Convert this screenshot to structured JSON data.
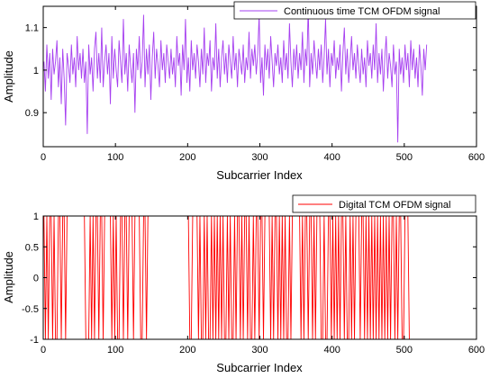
{
  "chart_data": [
    {
      "type": "line",
      "title": "",
      "xlabel": "Subcarrier Index",
      "ylabel": "Amplitude",
      "xlim": [
        0,
        600
      ],
      "ylim": [
        0.82,
        1.15
      ],
      "xticks": [
        0,
        100,
        200,
        300,
        400,
        500,
        600
      ],
      "yticks": [
        0.9,
        1,
        1.1
      ],
      "ytick_labels": [
        "0.9",
        "1",
        "1.1"
      ],
      "legend": "top-right",
      "grid": false,
      "series": [
        {
          "name": "Continuous time TCM OFDM signal",
          "color": "#a63ff0",
          "x_start": 1,
          "x_step": 2,
          "values": [
            1.02,
            0.95,
            1.06,
            0.98,
            1.04,
            0.93,
            1.05,
            0.99,
            1.02,
            1.07,
            0.96,
            1.03,
            0.92,
            1.05,
            0.98,
            0.87,
            1.04,
            1.01,
            0.97,
            1.06,
            0.99,
            1.03,
            0.96,
            1.08,
            1.0,
            1.04,
            0.98,
            1.05,
            0.97,
            1.02,
            0.85,
            1.06,
            0.99,
            1.03,
            0.95,
            1.05,
            1.09,
            0.98,
            1.04,
            0.97,
            1.1,
            0.96,
            1.02,
            1.06,
            0.99,
            1.04,
            0.92,
            1.08,
            0.98,
            1.05,
            1.0,
            0.96,
            1.07,
            1.02,
            0.97,
            1.12,
            0.99,
            1.04,
            0.95,
            1.06,
            1.01,
            0.97,
            1.04,
            0.9,
            1.05,
            1.0,
            1.08,
            0.98,
            1.02,
            1.13,
            0.96,
            1.05,
            0.99,
            1.06,
            0.93,
            1.03,
            1.09,
            0.98,
            1.05,
            1.01,
            0.96,
            1.07,
            1.0,
            1.04,
            0.97,
            1.06,
            1.02,
            0.98,
            1.05,
            0.99,
            1.03,
            0.96,
            1.08,
            1.01,
            1.04,
            0.94,
            1.06,
            1.0,
            1.12,
            0.97,
            1.03,
            0.95,
            1.07,
            1.0,
            1.04,
            0.98,
            1.06,
            1.02,
            0.96,
            1.05,
            0.99,
            1.1,
            0.97,
            1.04,
            1.01,
            1.07,
            0.95,
            1.03,
            1.0,
            1.11,
            0.98,
            1.05,
            0.96,
            1.03,
            1.07,
            0.99,
            1.04,
            0.97,
            1.06,
            1.02,
            0.98,
            1.08,
            1.0,
            1.04,
            0.96,
            1.05,
            1.02,
            0.99,
            1.06,
            0.97,
            1.03,
            1.0,
            1.09,
            0.98,
            1.05,
            1.01,
            1.06,
            0.99,
            1.04,
            1.13,
            0.97,
            1.03,
            0.94,
            1.06,
            1.0,
            1.05,
            0.98,
            1.08,
            1.02,
            0.96,
            1.04,
            1.01,
            1.06,
            0.99,
            1.03,
            0.97,
            1.07,
            1.0,
            1.04,
            0.98,
            1.11,
            1.02,
            0.96,
            1.05,
            1.0,
            1.06,
            0.98,
            1.04,
            1.0,
            1.09,
            0.97,
            1.05,
            1.01,
            1.15,
            0.96,
            1.04,
            0.99,
            1.07,
            1.02,
            0.98,
            1.05,
            1.0,
            1.06,
            0.97,
            1.03,
            1.12,
            0.99,
            1.05,
            0.96,
            1.04,
            1.01,
            1.07,
            0.98,
            1.03,
            1.0,
            1.06,
            0.95,
            1.04,
            1.1,
            0.99,
            1.05,
            0.97,
            1.02,
            1.08,
            1.0,
            1.04,
            0.98,
            1.06,
            1.01,
            0.97,
            1.05,
            0.99,
            1.03,
            0.96,
            1.07,
            1.01,
            1.04,
            0.98,
            1.06,
            1.0,
            1.11,
            0.97,
            1.04,
            0.99,
            1.05,
            0.95,
            1.03,
            1.08,
            0.98,
            1.04,
            1.01,
            0.96,
            1.06,
            0.99,
            1.02,
            0.83,
            1.05,
            0.99,
            1.03,
            0.97,
            1.06,
            1.0,
            1.04,
            0.96,
            1.07,
            1.0,
            1.05,
            0.98,
            1.03,
            0.96,
            1.06,
            1.01,
            0.94,
            1.05,
            1.0,
            1.06
          ]
        }
      ]
    },
    {
      "type": "line",
      "title": "",
      "xlabel": "Subcarrier Index",
      "ylabel": "Amplitude",
      "xlim": [
        0,
        600
      ],
      "ylim": [
        -1,
        1
      ],
      "xticks": [
        0,
        100,
        200,
        300,
        400,
        500,
        600
      ],
      "yticks": [
        -1,
        -0.5,
        0,
        0.5,
        1
      ],
      "ytick_labels": [
        "-1",
        "-0.5",
        "0",
        "0.5",
        "1"
      ],
      "legend": "top-right",
      "grid": false,
      "series": [
        {
          "name": "Digital TCM OFDM signal",
          "color": "#ff0000",
          "x_start": 1,
          "x_step": 2,
          "values": [
            1,
            -1,
            1,
            -1,
            1,
            1,
            -1,
            1,
            -1,
            -1,
            1,
            1,
            -1,
            1,
            1,
            -1,
            1,
            1,
            1,
            1,
            1,
            1,
            1,
            1,
            1,
            1,
            1,
            1,
            1,
            -1,
            -1,
            -1,
            1,
            -1,
            1,
            -1,
            1,
            1,
            -1,
            1,
            1,
            -1,
            1,
            1,
            1,
            1,
            1,
            -1,
            1,
            -1,
            1,
            -1,
            -1,
            1,
            1,
            -1,
            1,
            1,
            -1,
            1,
            1,
            1,
            -1,
            1,
            1,
            1,
            1,
            -1,
            -1,
            1,
            1,
            -1,
            1,
            1,
            1,
            1,
            1,
            1,
            1,
            1,
            1,
            1,
            1,
            1,
            1,
            1,
            1,
            1,
            1,
            1,
            1,
            1,
            1,
            1,
            1,
            1,
            1,
            1,
            1,
            1,
            1,
            -1,
            -1,
            1,
            1,
            1,
            1,
            -1,
            1,
            -1,
            -1,
            1,
            -1,
            1,
            -1,
            -1,
            1,
            -1,
            1,
            -1,
            1,
            -1,
            1,
            -1,
            1,
            -1,
            -1,
            1,
            -1,
            1,
            -1,
            -1,
            1,
            -1,
            1,
            1,
            -1,
            1,
            -1,
            1,
            1,
            -1,
            1,
            -1,
            -1,
            1,
            -1,
            1,
            1,
            -1,
            1,
            1,
            -1,
            1,
            1,
            1,
            1,
            -1,
            1,
            -1,
            1,
            1,
            -1,
            1,
            -1,
            1,
            -1,
            1,
            -1,
            -1,
            1,
            -1,
            1,
            1,
            1,
            1,
            1,
            1,
            -1,
            1,
            -1,
            1,
            1,
            -1,
            1,
            1,
            -1,
            1,
            -1,
            1,
            1,
            1,
            -1,
            -1,
            1,
            -1,
            -1,
            1,
            1,
            -1,
            1,
            -1,
            1,
            -1,
            1,
            -1,
            1,
            1,
            -1,
            1,
            -1,
            -1,
            1,
            -1,
            1,
            -1,
            1,
            1,
            1,
            -1,
            1,
            1,
            -1,
            1,
            -1,
            1,
            -1,
            1,
            -1,
            1,
            -1,
            1,
            -1,
            1,
            -1,
            1,
            -1,
            1,
            -1,
            1,
            -1,
            1,
            1,
            -1,
            1,
            -1,
            1,
            1,
            -1,
            -1,
            1,
            1,
            1,
            -1,
            -1,
            -1,
            -1,
            -1,
            -1,
            -1,
            -1,
            -1,
            -1,
            -1,
            -1,
            -1,
            -1,
            -1,
            -1,
            -1,
            -1,
            -1,
            -1,
            -1,
            -1,
            -1,
            -1,
            -1,
            -1,
            -1,
            -1,
            -1,
            -1,
            -1,
            -1,
            -1,
            -1,
            -1
          ]
        }
      ]
    }
  ]
}
